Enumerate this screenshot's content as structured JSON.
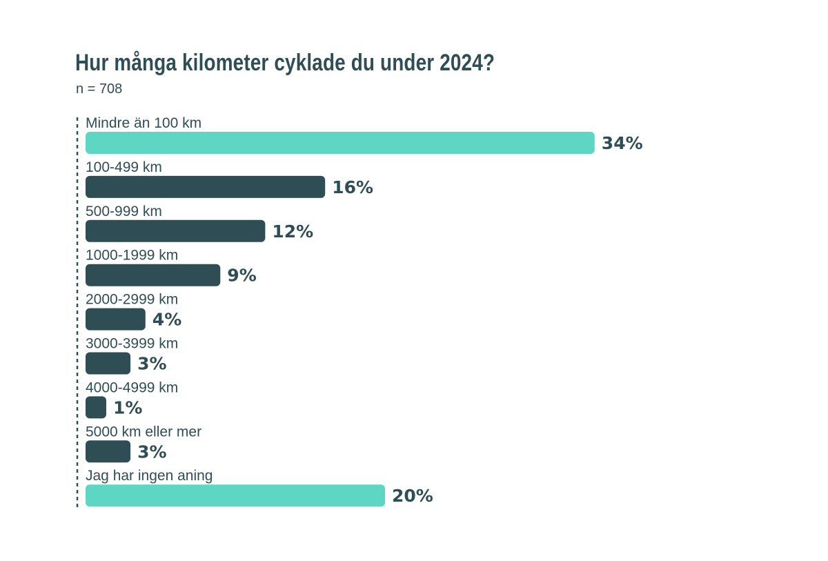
{
  "chart_data": {
    "type": "bar",
    "orientation": "horizontal",
    "title": "Hur många kilometer cyklade du under 2024?",
    "subtitle": "n = 708",
    "categories": [
      "Mindre än 100 km",
      "100-499 km",
      "500-999 km",
      "1000-1999 km",
      "2000-2999 km",
      "3000-3999 km",
      "4000-4999 km",
      "5000 km eller mer",
      "Jag har ingen aning"
    ],
    "values": [
      34,
      16,
      12,
      9,
      4,
      3,
      1,
      3,
      20
    ],
    "value_labels": [
      "34%",
      "16%",
      "12%",
      "9%",
      "4%",
      "3%",
      "1%",
      "3%",
      "20%"
    ],
    "highlighted": [
      true,
      false,
      false,
      false,
      false,
      false,
      false,
      false,
      true
    ],
    "colors": {
      "default": "#2f4d55",
      "highlight": "#5ed6c4",
      "text": "#2f4d55"
    },
    "unit": "%",
    "grid": false,
    "legend": "none"
  }
}
